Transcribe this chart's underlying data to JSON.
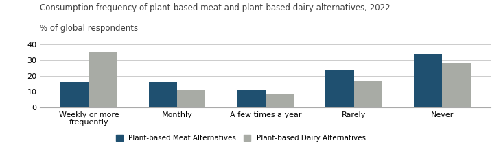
{
  "title_line1": "Consumption frequency of plant-based meat and plant-based dairy alternatives, 2022",
  "title_line2": "% of global respondents",
  "categories": [
    "Weekly or more\nfrequently",
    "Monthly",
    "A few times a year",
    "Rarely",
    "Never"
  ],
  "meat_values": [
    16,
    16,
    11,
    24,
    34
  ],
  "dairy_values": [
    35,
    11.5,
    8.5,
    17,
    28
  ],
  "meat_color": "#1f5070",
  "dairy_color": "#a8aba5",
  "ylim": [
    0,
    40
  ],
  "yticks": [
    0,
    10,
    20,
    30,
    40
  ],
  "legend_meat": "Plant-based Meat Alternatives",
  "legend_dairy": "Plant-based Dairy Alternatives",
  "bar_width": 0.32,
  "title_fontsize": 8.5,
  "subtitle_fontsize": 8.5,
  "tick_fontsize": 8,
  "legend_fontsize": 7.5,
  "background_color": "#ffffff"
}
